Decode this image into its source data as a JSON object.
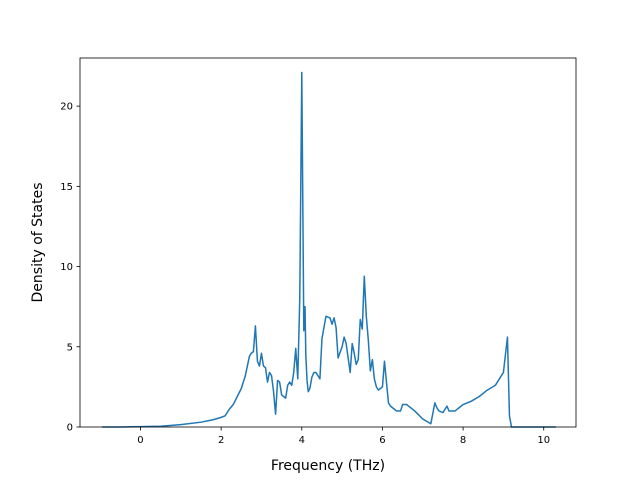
{
  "chart_data": {
    "type": "line",
    "title": "",
    "xlabel": "Frequency (THz)",
    "ylabel": "Density of States",
    "xlim": [
      -1.5,
      10.8
    ],
    "ylim": [
      0,
      23
    ],
    "x_ticks": [
      0,
      2,
      4,
      6,
      8,
      10
    ],
    "y_ticks": [
      0,
      5,
      10,
      15,
      20
    ],
    "grid": false,
    "legend": "none",
    "colors": {
      "line": "#1f77b4",
      "axes": "#000000",
      "background": "#ffffff"
    },
    "series": [
      {
        "x": [
          -0.95,
          -0.5,
          0,
          0.5,
          1.0,
          1.5,
          1.8,
          2.0,
          2.1,
          2.2,
          2.3,
          2.4,
          2.5,
          2.6,
          2.7,
          2.75,
          2.8,
          2.85,
          2.9,
          2.95,
          3.0,
          3.05,
          3.1,
          3.15,
          3.2,
          3.25,
          3.3,
          3.35,
          3.4,
          3.45,
          3.5,
          3.55,
          3.6,
          3.65,
          3.7,
          3.75,
          3.8,
          3.85,
          3.9,
          3.95,
          4.0,
          4.05,
          4.08,
          4.1,
          4.13,
          4.16,
          4.2,
          4.25,
          4.3,
          4.35,
          4.4,
          4.45,
          4.5,
          4.6,
          4.7,
          4.75,
          4.8,
          4.85,
          4.9,
          5.0,
          5.05,
          5.1,
          5.15,
          5.2,
          5.25,
          5.3,
          5.35,
          5.4,
          5.45,
          5.5,
          5.55,
          5.6,
          5.65,
          5.7,
          5.75,
          5.8,
          5.85,
          5.9,
          5.95,
          6.0,
          6.05,
          6.1,
          6.15,
          6.2,
          6.25,
          6.3,
          6.35,
          6.4,
          6.45,
          6.5,
          6.6,
          6.8,
          7.0,
          7.2,
          7.3,
          7.35,
          7.4,
          7.5,
          7.6,
          7.65,
          7.7,
          7.8,
          7.85,
          7.9,
          8.0,
          8.2,
          8.4,
          8.6,
          8.8,
          9.0,
          9.1,
          9.15,
          9.2,
          9.25,
          9.28,
          9.3,
          9.35,
          9.4,
          9.5,
          10.3
        ],
        "y": [
          0,
          0,
          0.02,
          0.05,
          0.15,
          0.3,
          0.45,
          0.6,
          0.7,
          1.1,
          1.4,
          1.9,
          2.4,
          3.2,
          4.4,
          4.6,
          4.7,
          6.3,
          4.1,
          3.8,
          4.6,
          3.8,
          3.7,
          2.8,
          3.4,
          3.2,
          2.2,
          0.8,
          2.9,
          2.8,
          2.0,
          1.9,
          1.8,
          2.6,
          2.8,
          2.6,
          3.4,
          4.9,
          3.0,
          8.0,
          22.1,
          6.0,
          7.5,
          4.5,
          2.9,
          2.2,
          2.4,
          3.1,
          3.4,
          3.4,
          3.2,
          3.0,
          5.5,
          6.9,
          6.8,
          6.4,
          6.8,
          6.2,
          4.3,
          5.0,
          5.6,
          5.2,
          4.3,
          3.4,
          5.2,
          4.6,
          3.9,
          4.2,
          6.7,
          6.1,
          9.4,
          6.9,
          5.4,
          3.5,
          4.2,
          3.0,
          2.5,
          2.3,
          2.4,
          2.5,
          4.1,
          2.8,
          1.5,
          1.3,
          1.2,
          1.1,
          1.0,
          1.0,
          1.0,
          1.4,
          1.4,
          1.0,
          0.5,
          0.2,
          1.5,
          1.2,
          1.0,
          0.9,
          1.3,
          1.0,
          1.0,
          1.0,
          1.1,
          1.2,
          1.4,
          1.6,
          1.9,
          2.3,
          2.6,
          3.4,
          5.6,
          0.7,
          0.0,
          0.0,
          0.0,
          0.0,
          0.0,
          0.0,
          0.0,
          0.0
        ]
      }
    ]
  }
}
